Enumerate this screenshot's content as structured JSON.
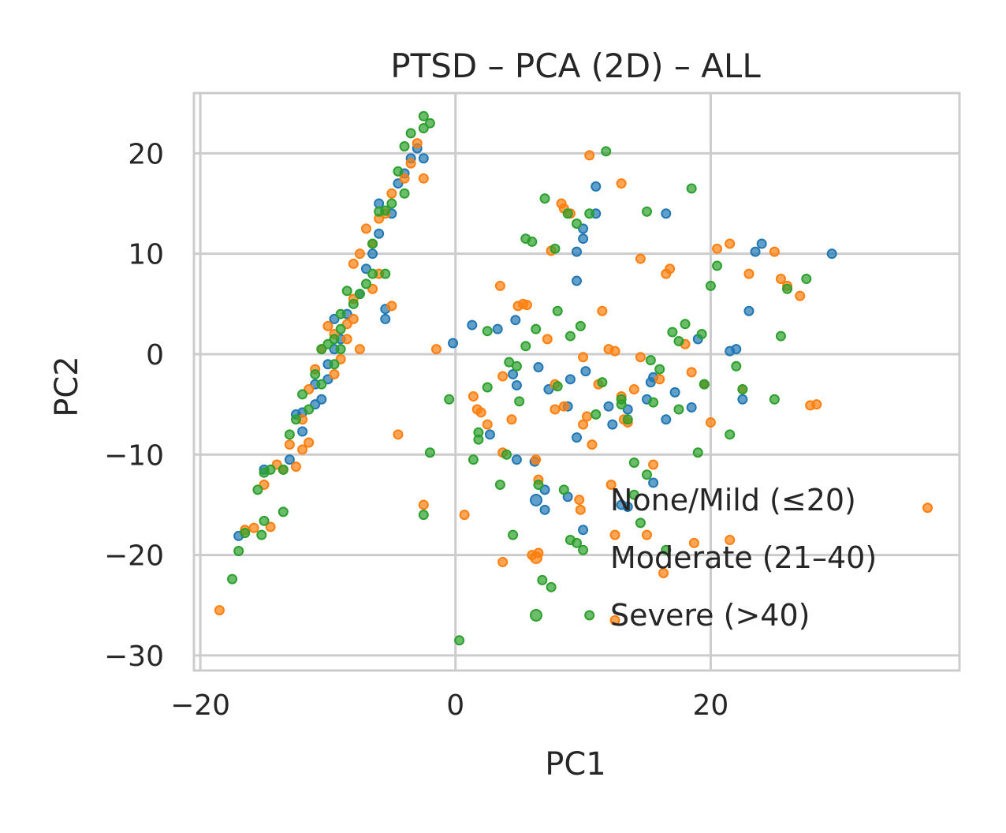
{
  "chart_data": {
    "type": "scatter",
    "title": "PTSD – PCA (2D) – ALL",
    "xlabel": "PC1",
    "ylabel": "PC2",
    "xlim": [
      -20.5,
      39.5
    ],
    "ylim": [
      -31.5,
      26
    ],
    "xticks": [
      {
        "value": -20,
        "label": "−20"
      },
      {
        "value": 0,
        "label": "0"
      },
      {
        "value": 20,
        "label": "20"
      }
    ],
    "yticks": [
      {
        "value": 20,
        "label": "20"
      },
      {
        "value": 10,
        "label": "10"
      },
      {
        "value": 0,
        "label": "0"
      },
      {
        "value": -10,
        "label": "−10"
      },
      {
        "value": -20,
        "label": "−20"
      },
      {
        "value": -30,
        "label": "−30"
      }
    ],
    "grid": true,
    "legend_position": "lower right",
    "series": [
      {
        "name": "None/Mild (≤20)",
        "color": "#1f77b4",
        "points": [
          [
            -17,
            -18.1
          ],
          [
            -15,
            -11.5
          ],
          [
            -13,
            -10.5
          ],
          [
            -12,
            -7.7
          ],
          [
            -12,
            -5.8
          ],
          [
            -11,
            -5
          ],
          [
            -10.5,
            -4.5
          ],
          [
            -10,
            -2.5
          ],
          [
            -10,
            -1
          ],
          [
            -9.5,
            0.5
          ],
          [
            -9,
            1.5
          ],
          [
            -9.5,
            3.5
          ],
          [
            -8.5,
            4
          ],
          [
            -7.5,
            6
          ],
          [
            -7,
            8.5
          ],
          [
            -6.5,
            10
          ],
          [
            -6,
            12
          ],
          [
            -5.5,
            4.5
          ],
          [
            -5.5,
            3.5
          ],
          [
            -5,
            14
          ],
          [
            -6,
            15
          ],
          [
            -4.5,
            17
          ],
          [
            -4,
            18
          ],
          [
            -3.5,
            19.5
          ],
          [
            -3,
            20.5
          ],
          [
            -2.5,
            19.5
          ],
          [
            -12.5,
            -6
          ],
          [
            -11,
            -3
          ],
          [
            -0.2,
            1.1
          ],
          [
            1.3,
            2.9
          ],
          [
            2.7,
            -8
          ],
          [
            3.3,
            2.5
          ],
          [
            4.5,
            -2
          ],
          [
            4.7,
            3.4
          ],
          [
            4.8,
            -10.5
          ],
          [
            4.8,
            -3.1
          ],
          [
            6.2,
            -10.7
          ],
          [
            6.5,
            -1.3
          ],
          [
            7,
            -13.5
          ],
          [
            7,
            -15.5
          ],
          [
            7.3,
            -3.5
          ],
          [
            8.8,
            -14.2
          ],
          [
            8.8,
            -5.2
          ],
          [
            9,
            -2.5
          ],
          [
            9.5,
            7.3
          ],
          [
            9.5,
            10.2
          ],
          [
            9.5,
            -8.3
          ],
          [
            10,
            11.5
          ],
          [
            10,
            12.5
          ],
          [
            10,
            -17.5
          ],
          [
            10.2,
            -1.7
          ],
          [
            11,
            14
          ],
          [
            11,
            16.7
          ],
          [
            12,
            -5.2
          ],
          [
            12.3,
            -7
          ],
          [
            13,
            -15
          ],
          [
            13.5,
            -15.2
          ],
          [
            13.5,
            -5.5
          ],
          [
            15,
            -4.5
          ],
          [
            15.3,
            -2.8
          ],
          [
            15.5,
            -2.3
          ],
          [
            15.5,
            -12.8
          ],
          [
            16.5,
            14
          ],
          [
            16.5,
            -6.5
          ],
          [
            17.2,
            -3.8
          ],
          [
            18.5,
            -5.3
          ],
          [
            19,
            1.5
          ],
          [
            19.5,
            -3
          ],
          [
            21.5,
            0.3
          ],
          [
            22,
            0.5
          ],
          [
            22.5,
            -4.5
          ],
          [
            23,
            4.3
          ],
          [
            23.5,
            10.2
          ],
          [
            24,
            11
          ],
          [
            29.5,
            10
          ]
        ]
      },
      {
        "name": "Moderate (21–40)",
        "color": "#ff7f0e",
        "points": [
          [
            -18.5,
            -25.5
          ],
          [
            -16.5,
            -17.5
          ],
          [
            -15.8,
            -17.3
          ],
          [
            -14.5,
            -17.2
          ],
          [
            -15,
            -13
          ],
          [
            -14,
            -11
          ],
          [
            -13.5,
            -11.5
          ],
          [
            -12.5,
            -11.2
          ],
          [
            -13,
            -9
          ],
          [
            -11.5,
            -8.8
          ],
          [
            -12,
            -6.5
          ],
          [
            -11.5,
            -3.5
          ],
          [
            -11,
            -1.5
          ],
          [
            -10.5,
            0.5
          ],
          [
            -10,
            2.8
          ],
          [
            -9.5,
            2
          ],
          [
            -9,
            -0.5
          ],
          [
            -8.5,
            1.5
          ],
          [
            -8.5,
            3
          ],
          [
            -8,
            5.5
          ],
          [
            -8,
            9
          ],
          [
            -7.5,
            10
          ],
          [
            -7,
            12.5
          ],
          [
            -6.5,
            11
          ],
          [
            -6,
            13.5
          ],
          [
            -5.5,
            14
          ],
          [
            -5,
            16
          ],
          [
            -4,
            17.5
          ],
          [
            -3.5,
            19
          ],
          [
            -3,
            21
          ],
          [
            -2.5,
            17.5
          ],
          [
            -9.5,
            -2
          ],
          [
            -7.5,
            0.5
          ],
          [
            -8,
            3.5
          ],
          [
            -6.5,
            6.5
          ],
          [
            -6,
            8
          ],
          [
            -5,
            4.8
          ],
          [
            -4.5,
            -8
          ],
          [
            -2.5,
            -15
          ],
          [
            -1.5,
            0.5
          ],
          [
            -12,
            -9.5
          ],
          [
            0.7,
            -16
          ],
          [
            1.4,
            -4.2
          ],
          [
            1.7,
            -5.5
          ],
          [
            2,
            -5.8
          ],
          [
            2.5,
            -7
          ],
          [
            3.5,
            6.8
          ],
          [
            3.7,
            -9.8
          ],
          [
            3.7,
            -20.7
          ],
          [
            3.7,
            -2.2
          ],
          [
            4.4,
            -6.5
          ],
          [
            4.9,
            4.8
          ],
          [
            5.3,
            5
          ],
          [
            5.6,
            4.9
          ],
          [
            6,
            -20
          ],
          [
            6.3,
            -10.5
          ],
          [
            6.5,
            -19.8
          ],
          [
            6.5,
            -12.5
          ],
          [
            7.2,
            1.5
          ],
          [
            7.5,
            10.3
          ],
          [
            7.8,
            -3
          ],
          [
            7.8,
            -5.5
          ],
          [
            8.3,
            15
          ],
          [
            8.5,
            14.5
          ],
          [
            8.5,
            -5.2
          ],
          [
            9,
            14
          ],
          [
            9.7,
            -14.5
          ],
          [
            9.8,
            -15.5
          ],
          [
            10,
            -7
          ],
          [
            10,
            -0.3
          ],
          [
            10.3,
            -6.2
          ],
          [
            10.5,
            19.8
          ],
          [
            10.7,
            -9
          ],
          [
            11.2,
            -3
          ],
          [
            11.5,
            4.3
          ],
          [
            12,
            0.5
          ],
          [
            12.2,
            -13
          ],
          [
            12.5,
            0.3
          ],
          [
            12.5,
            -18
          ],
          [
            12.5,
            -26.5
          ],
          [
            13,
            17
          ],
          [
            13,
            -4.2
          ],
          [
            13.2,
            -6.5
          ],
          [
            13.5,
            -6.8
          ],
          [
            14,
            -3.5
          ],
          [
            14.5,
            9.5
          ],
          [
            14.5,
            -0.3
          ],
          [
            15,
            -18
          ],
          [
            15.5,
            -11
          ],
          [
            16,
            -2.5
          ],
          [
            16.3,
            -21.8
          ],
          [
            16.5,
            8
          ],
          [
            16.8,
            8.5
          ],
          [
            18,
            1
          ],
          [
            18.5,
            -1.8
          ],
          [
            18.7,
            -18.8
          ],
          [
            19.5,
            -3
          ],
          [
            20,
            -6.8
          ],
          [
            20.5,
            10.5
          ],
          [
            21.5,
            11
          ],
          [
            21.5,
            -18.5
          ],
          [
            22.5,
            -3.5
          ],
          [
            23,
            8
          ],
          [
            25,
            10.2
          ],
          [
            25.5,
            7.5
          ],
          [
            26,
            6.8
          ],
          [
            27,
            5.8
          ],
          [
            27.8,
            -5.1
          ],
          [
            28.3,
            -5
          ],
          [
            37,
            -15.3
          ]
        ]
      },
      {
        "name": "Severe (>40)",
        "color": "#2ca02c",
        "points": [
          [
            -17,
            -19.6
          ],
          [
            -17.5,
            -22.4
          ],
          [
            -16.5,
            -17.8
          ],
          [
            -15.5,
            -13.5
          ],
          [
            -15,
            -11.8
          ],
          [
            -14.5,
            -11.5
          ],
          [
            -13.5,
            -11.5
          ],
          [
            -13.5,
            -15.7
          ],
          [
            -15,
            -16.6
          ],
          [
            -15.2,
            -18
          ],
          [
            -13,
            -8
          ],
          [
            -12.5,
            -6.5
          ],
          [
            -12,
            -4
          ],
          [
            -11.5,
            -5.5
          ],
          [
            -11,
            -2
          ],
          [
            -10.5,
            -3
          ],
          [
            -10.5,
            0.5
          ],
          [
            -10,
            1
          ],
          [
            -9.5,
            1.5
          ],
          [
            -9.5,
            -1
          ],
          [
            -9,
            0.5
          ],
          [
            -9,
            2.5
          ],
          [
            -9,
            4
          ],
          [
            -8.5,
            6.3
          ],
          [
            -8,
            5
          ],
          [
            -7.5,
            6
          ],
          [
            -7,
            7
          ],
          [
            -6.5,
            8
          ],
          [
            -5.5,
            8
          ],
          [
            -6.5,
            11
          ],
          [
            -6,
            14.2
          ],
          [
            -5.5,
            14.3
          ],
          [
            -5,
            15
          ],
          [
            -4.5,
            18.2
          ],
          [
            -4,
            16
          ],
          [
            -4,
            20.7
          ],
          [
            -3.5,
            22
          ],
          [
            -2.5,
            23.7
          ],
          [
            -2.5,
            22.5
          ],
          [
            -2,
            23
          ],
          [
            -0.5,
            -4.5
          ],
          [
            -2,
            -9.8
          ],
          [
            -2.5,
            -16
          ],
          [
            0.3,
            -28.5
          ],
          [
            1.4,
            -10.5
          ],
          [
            1.8,
            -7.8
          ],
          [
            1.8,
            -8.5
          ],
          [
            2.5,
            -3.3
          ],
          [
            2.5,
            2.3
          ],
          [
            3.5,
            -13
          ],
          [
            4,
            -10
          ],
          [
            4.2,
            -0.8
          ],
          [
            4.5,
            -18
          ],
          [
            4.8,
            -1.2
          ],
          [
            5,
            -4.7
          ],
          [
            5.5,
            0.8
          ],
          [
            5.5,
            11.5
          ],
          [
            6,
            11.2
          ],
          [
            6.3,
            2.5
          ],
          [
            6.5,
            -13
          ],
          [
            6.8,
            -22.5
          ],
          [
            7,
            15.5
          ],
          [
            7.5,
            -23.2
          ],
          [
            7.8,
            10.5
          ],
          [
            8,
            -3.2
          ],
          [
            8,
            4.3
          ],
          [
            8.5,
            -13.5
          ],
          [
            8.8,
            14
          ],
          [
            9,
            1.8
          ],
          [
            9,
            -18.5
          ],
          [
            9.5,
            13
          ],
          [
            9.5,
            -18.8
          ],
          [
            9.8,
            2.8
          ],
          [
            10,
            -19.5
          ],
          [
            10.5,
            -26
          ],
          [
            10.5,
            14
          ],
          [
            11,
            -6
          ],
          [
            11.5,
            -2.8
          ],
          [
            11.8,
            20.2
          ],
          [
            13,
            -4.5
          ],
          [
            13,
            -5
          ],
          [
            13.5,
            -6.5
          ],
          [
            14,
            -10.8
          ],
          [
            14,
            -14
          ],
          [
            14.5,
            -16.8
          ],
          [
            15,
            -12
          ],
          [
            15,
            14.2
          ],
          [
            15.3,
            -0.6
          ],
          [
            15.5,
            -4.8
          ],
          [
            16,
            -1.5
          ],
          [
            16.5,
            -19.5
          ],
          [
            17,
            2.2
          ],
          [
            17.5,
            -5.5
          ],
          [
            17.5,
            1.3
          ],
          [
            18,
            3
          ],
          [
            18.5,
            16.5
          ],
          [
            19,
            -9.8
          ],
          [
            19.3,
            2
          ],
          [
            19.5,
            -3
          ],
          [
            20,
            6.8
          ],
          [
            20.5,
            8.8
          ],
          [
            21.5,
            -8
          ],
          [
            22,
            -1.2
          ],
          [
            22.5,
            -3.5
          ],
          [
            25,
            -4.5
          ],
          [
            25.5,
            1.8
          ],
          [
            26,
            6.5
          ],
          [
            27.5,
            7.5
          ]
        ]
      }
    ]
  }
}
